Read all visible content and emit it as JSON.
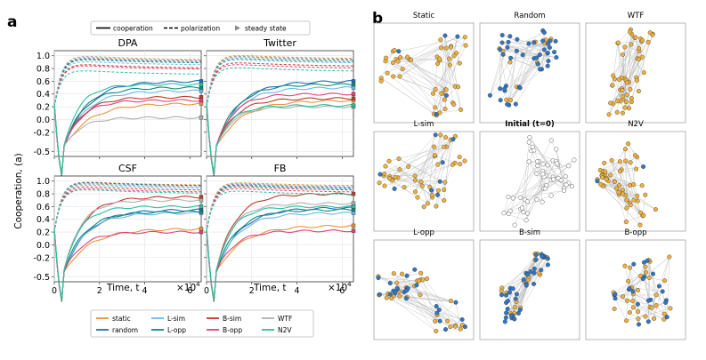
{
  "panel_a_letter": "a",
  "panel_b_letter": "b",
  "style_legend": {
    "items": [
      {
        "label": "cooperation",
        "kind": "solid"
      },
      {
        "label": "polarization",
        "kind": "dashed"
      },
      {
        "label": "steady state",
        "kind": "marker"
      }
    ]
  },
  "strategy_legend": [
    {
      "label": "static",
      "color": "#e8943a"
    },
    {
      "label": "L-sim",
      "color": "#6db6e8"
    },
    {
      "label": "B-sim",
      "color": "#c0392b"
    },
    {
      "label": "WTF",
      "color": "#b0b0b0"
    },
    {
      "label": "random",
      "color": "#1f6fb5"
    },
    {
      "label": "L-opp",
      "color": "#0e8a7a"
    },
    {
      "label": "B-opp",
      "color": "#e0417a"
    },
    {
      "label": "N2V",
      "color": "#28c0a0"
    }
  ],
  "axes": {
    "ylabel": "Cooperation, (a)",
    "xlabel": "Time, t",
    "x_exponent": "×10",
    "x_exponent_power": "4",
    "y_ticks": [
      "-0.5",
      "-0.2",
      "0.0",
      "0.2",
      "0.4",
      "0.6",
      "0.8",
      "1.0"
    ],
    "x_ticks": [
      "0",
      "2",
      "4",
      "6"
    ]
  },
  "chart_data": [
    {
      "type": "line",
      "title": "DPA",
      "xlim": [
        0,
        6.5
      ],
      "ylim": [
        -0.58,
        1.08
      ],
      "coop_final": {
        "static": 0.25,
        "random": 0.6,
        "L-sim": 0.45,
        "L-opp": 0.5,
        "B-sim": 0.35,
        "B-opp": 0.3,
        "WTF": 0.03,
        "N2V": 0.55
      },
      "pol_final": {
        "static": 0.92,
        "random": 0.9,
        "L-sim": 0.85,
        "L-opp": 0.88,
        "B-sim": 0.8,
        "B-opp": 0.78,
        "WTF": 0.93,
        "N2V": 0.7
      }
    },
    {
      "type": "line",
      "title": "Twitter",
      "xlim": [
        0,
        6.5
      ],
      "ylim": [
        -0.58,
        1.08
      ],
      "coop_final": {
        "static": 0.3,
        "random": 0.6,
        "L-sim": 0.5,
        "L-opp": 0.55,
        "B-sim": 0.33,
        "B-opp": 0.4,
        "WTF": 0.2,
        "N2V": 0.22
      },
      "pol_final": {
        "static": 0.95,
        "random": 0.93,
        "L-sim": 0.88,
        "L-opp": 0.9,
        "B-sim": 0.83,
        "B-opp": 0.8,
        "WTF": 0.92,
        "N2V": 0.75
      }
    },
    {
      "type": "line",
      "title": "CSF",
      "xlim": [
        0,
        6.5
      ],
      "ylim": [
        -0.58,
        1.08
      ],
      "coop_final": {
        "static": 0.25,
        "random": 0.55,
        "L-sim": 0.5,
        "L-opp": 0.52,
        "B-sim": 0.75,
        "B-opp": 0.2,
        "WTF": 0.7,
        "N2V": 0.6
      },
      "pol_final": {
        "static": 0.93,
        "random": 0.92,
        "L-sim": 0.88,
        "L-opp": 0.9,
        "B-sim": 0.85,
        "B-opp": 0.82,
        "WTF": 0.9,
        "N2V": 0.8
      }
    },
    {
      "type": "line",
      "title": "FB",
      "xlim": [
        0,
        6.5
      ],
      "ylim": [
        -0.58,
        1.08
      ],
      "coop_final": {
        "static": 0.3,
        "random": 0.58,
        "L-sim": 0.5,
        "L-opp": 0.55,
        "B-sim": 0.8,
        "B-opp": 0.22,
        "WTF": 0.65,
        "N2V": 0.6
      },
      "pol_final": {
        "static": 0.92,
        "random": 0.9,
        "L-sim": 0.87,
        "L-opp": 0.88,
        "B-sim": 0.85,
        "B-opp": 0.82,
        "WTF": 0.9,
        "N2V": 0.78
      }
    }
  ],
  "networks": [
    {
      "title": "Static",
      "bold": false,
      "orange": 0.9,
      "blue": 0.1,
      "white": 0.0
    },
    {
      "title": "Random",
      "bold": false,
      "orange": 0.2,
      "blue": 0.8,
      "white": 0.0
    },
    {
      "title": "WTF",
      "bold": false,
      "orange": 1.0,
      "blue": 0.0,
      "white": 0.0
    },
    {
      "title": "L-sim",
      "bold": false,
      "orange": 0.85,
      "blue": 0.15,
      "white": 0.0
    },
    {
      "title": "Initial (t=0)",
      "bold": true,
      "orange": 0.0,
      "blue": 0.0,
      "white": 1.0
    },
    {
      "title": "N2V",
      "bold": false,
      "orange": 0.95,
      "blue": 0.05,
      "white": 0.0
    },
    {
      "title": "L-opp",
      "bold": false,
      "orange": 0.55,
      "blue": 0.45,
      "white": 0.0
    },
    {
      "title": "B-sim",
      "bold": false,
      "orange": 0.3,
      "blue": 0.7,
      "white": 0.0
    },
    {
      "title": "B-opp",
      "bold": false,
      "orange": 0.6,
      "blue": 0.4,
      "white": 0.0
    }
  ]
}
